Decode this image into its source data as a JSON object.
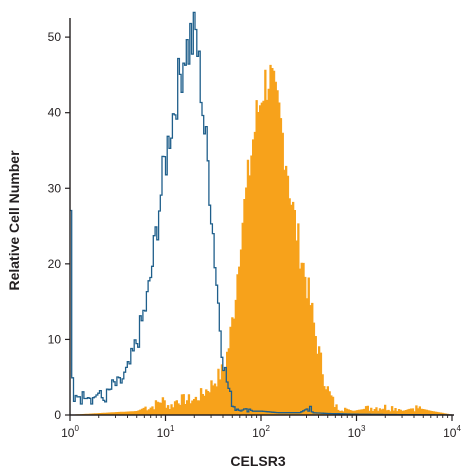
{
  "chart_data": {
    "type": "area",
    "title": "",
    "xlabel": "CELSR3",
    "ylabel": "Relative Cell Number",
    "x_scale": "log",
    "xlim": [
      1,
      10000
    ],
    "ylim": [
      0,
      52
    ],
    "grid": false,
    "x_ticks": [
      {
        "value": 1,
        "base": "10",
        "exp": "0"
      },
      {
        "value": 10,
        "base": "10",
        "exp": "1"
      },
      {
        "value": 100,
        "base": "10",
        "exp": "2"
      },
      {
        "value": 1000,
        "base": "10",
        "exp": "3"
      },
      {
        "value": 10000,
        "base": "10",
        "exp": "4"
      }
    ],
    "y_ticks": [
      0,
      10,
      20,
      30,
      40,
      50
    ],
    "series": [
      {
        "kind": "outline",
        "color": "#1f5f8b",
        "points": [
          [
            1.0,
            28
          ],
          [
            1.05,
            0
          ],
          [
            1.1,
            2
          ],
          [
            1.2,
            3
          ],
          [
            1.3,
            2
          ],
          [
            1.4,
            3
          ],
          [
            1.5,
            3
          ],
          [
            1.7,
            2
          ],
          [
            1.9,
            3
          ],
          [
            2.2,
            2
          ],
          [
            2.5,
            3
          ],
          [
            2.8,
            4
          ],
          [
            3.2,
            4
          ],
          [
            3.6,
            5
          ],
          [
            4.0,
            6
          ],
          [
            4.5,
            8
          ],
          [
            5.0,
            10
          ],
          [
            5.5,
            12
          ],
          [
            6.0,
            14
          ],
          [
            6.5,
            16
          ],
          [
            7.0,
            19
          ],
          [
            7.5,
            22
          ],
          [
            8.0,
            25
          ],
          [
            8.5,
            28
          ],
          [
            9.0,
            30
          ],
          [
            9.5,
            33
          ],
          [
            10,
            34
          ],
          [
            10.5,
            36
          ],
          [
            11,
            38
          ],
          [
            12,
            40
          ],
          [
            13,
            43
          ],
          [
            14,
            45
          ],
          [
            15,
            47
          ],
          [
            16,
            49
          ],
          [
            17,
            48
          ],
          [
            18,
            50
          ],
          [
            19,
            49
          ],
          [
            20,
            51
          ],
          [
            21,
            49
          ],
          [
            22,
            46
          ],
          [
            23,
            44
          ],
          [
            24,
            41
          ],
          [
            25,
            38
          ],
          [
            27,
            34
          ],
          [
            29,
            29
          ],
          [
            31,
            24
          ],
          [
            33,
            19
          ],
          [
            35,
            15
          ],
          [
            37,
            11
          ],
          [
            39,
            8
          ],
          [
            41,
            6
          ],
          [
            44,
            4
          ],
          [
            48,
            2
          ],
          [
            52,
            1
          ],
          [
            60,
            0.5
          ],
          [
            70,
            1
          ],
          [
            80,
            0.5
          ],
          [
            100,
            0.5
          ],
          [
            150,
            0.3
          ],
          [
            250,
            0.3
          ],
          [
            320,
            1
          ],
          [
            340,
            0.3
          ],
          [
            500,
            0.2
          ],
          [
            1000,
            0.1
          ],
          [
            10000,
            0
          ]
        ]
      },
      {
        "kind": "filled",
        "color": "#f7a21b",
        "points": [
          [
            1.0,
            0
          ],
          [
            5,
            0.5
          ],
          [
            6,
            1
          ],
          [
            7,
            1
          ],
          [
            9,
            2
          ],
          [
            11,
            1
          ],
          [
            13,
            2
          ],
          [
            16,
            2
          ],
          [
            20,
            2
          ],
          [
            25,
            3
          ],
          [
            30,
            4
          ],
          [
            35,
            5
          ],
          [
            40,
            6
          ],
          [
            45,
            9
          ],
          [
            50,
            13
          ],
          [
            55,
            18
          ],
          [
            60,
            24
          ],
          [
            65,
            27
          ],
          [
            70,
            30
          ],
          [
            75,
            33
          ],
          [
            80,
            36
          ],
          [
            85,
            38
          ],
          [
            90,
            40
          ],
          [
            95,
            41
          ],
          [
            100,
            43
          ],
          [
            110,
            44
          ],
          [
            120,
            45
          ],
          [
            130,
            43
          ],
          [
            140,
            41
          ],
          [
            150,
            40
          ],
          [
            160,
            38
          ],
          [
            170,
            36
          ],
          [
            180,
            34
          ],
          [
            190,
            32
          ],
          [
            200,
            29
          ],
          [
            220,
            26
          ],
          [
            240,
            23
          ],
          [
            260,
            21
          ],
          [
            280,
            19
          ],
          [
            300,
            17
          ],
          [
            330,
            14
          ],
          [
            360,
            11
          ],
          [
            400,
            8
          ],
          [
            450,
            5
          ],
          [
            500,
            3
          ],
          [
            600,
            1
          ],
          [
            700,
            1
          ],
          [
            900,
            0.5
          ],
          [
            1500,
            1
          ],
          [
            2500,
            1
          ],
          [
            3000,
            0.5
          ],
          [
            4000,
            1
          ],
          [
            6000,
            0.5
          ],
          [
            10000,
            0
          ]
        ]
      }
    ]
  }
}
